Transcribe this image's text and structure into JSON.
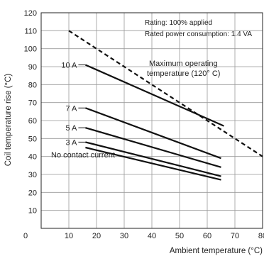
{
  "chart_data": {
    "type": "line",
    "xlabel": "Ambient temperature (°C)",
    "ylabel": "Coil temperature rise (°C)",
    "xlim": [
      0,
      80
    ],
    "ylim": [
      0,
      120
    ],
    "x_ticks": [
      10,
      20,
      30,
      40,
      50,
      60,
      70,
      80
    ],
    "y_ticks": [
      10,
      20,
      30,
      40,
      50,
      60,
      70,
      80,
      90,
      100,
      110,
      120
    ],
    "origin_label": "0",
    "grid": true,
    "notes": [
      "Rating: 100% applied",
      "Rated power consumption: 1.4 VA"
    ],
    "series": [
      {
        "name": "10 A",
        "x": [
          16,
          66
        ],
        "y": [
          91,
          57
        ],
        "style": "solid"
      },
      {
        "name": "7 A",
        "x": [
          16,
          65
        ],
        "y": [
          67,
          39
        ],
        "style": "solid"
      },
      {
        "name": "5 A",
        "x": [
          16,
          65
        ],
        "y": [
          56,
          34
        ],
        "style": "solid"
      },
      {
        "name": "3 A",
        "x": [
          16,
          65
        ],
        "y": [
          48,
          29
        ],
        "style": "solid"
      },
      {
        "name": "No contact current",
        "x": [
          16,
          65
        ],
        "y": [
          45,
          27
        ],
        "style": "solid"
      }
    ],
    "limit_line": {
      "label": "Maximum operating temperature (120° C)",
      "label_lines": [
        "Maximum operating",
        "temperature (120° C)"
      ],
      "x": [
        10,
        80
      ],
      "y": [
        110,
        40
      ],
      "style": "dashed"
    }
  }
}
